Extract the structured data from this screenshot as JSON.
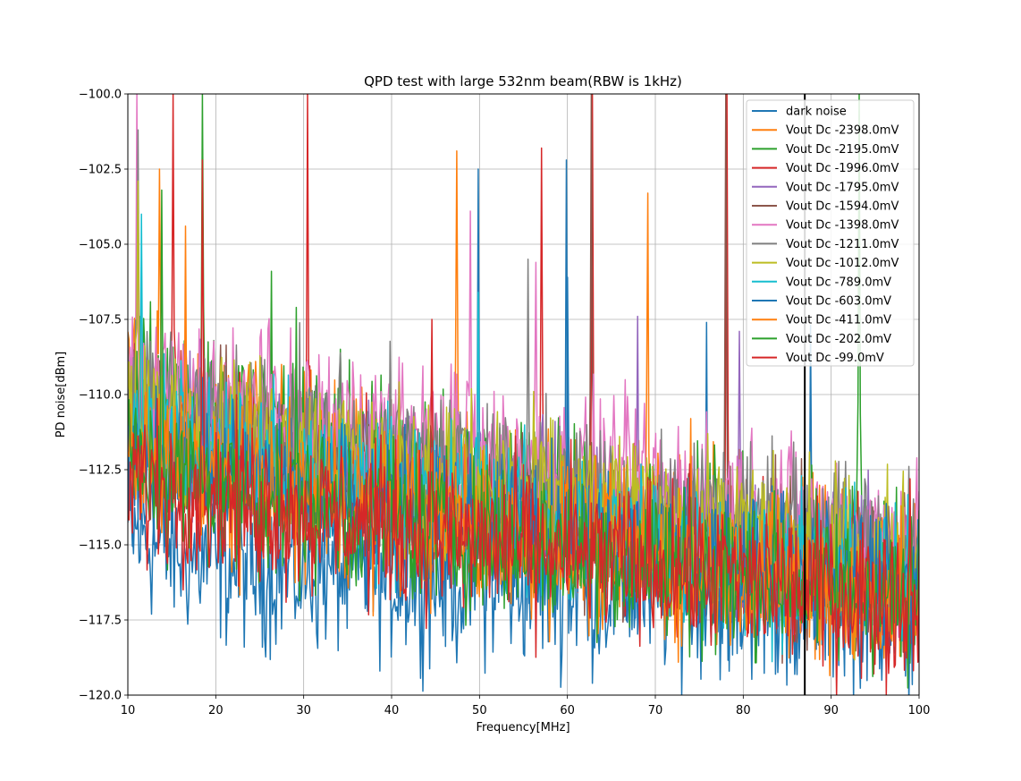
{
  "chart_data": {
    "type": "line",
    "title": "QPD test with large 532nm beam(RBW is 1kHz)",
    "xlabel": "Frequency[MHz]",
    "ylabel": "PD noise[dBm]",
    "xlim": [
      10,
      100
    ],
    "ylim": [
      -120,
      -100
    ],
    "xticks": [
      10,
      20,
      30,
      40,
      50,
      60,
      70,
      80,
      90,
      100
    ],
    "xtick_labels": [
      "10",
      "20",
      "30",
      "40",
      "50",
      "60",
      "70",
      "80",
      "90",
      "100"
    ],
    "yticks": [
      -120,
      -117.5,
      -115,
      -112.5,
      -110,
      -107.5,
      -105,
      -102.5,
      -100
    ],
    "ytick_labels": [
      "−120.0",
      "−117.5",
      "−115.0",
      "−112.5",
      "−110.0",
      "−107.5",
      "−105.0",
      "−102.5",
      "−100.0"
    ],
    "grid": true,
    "legend_position": "top-right",
    "vertical_marker_x": 87,
    "series": [
      {
        "name": "dark noise",
        "color": "#1f77b4",
        "x": [
          10,
          12,
          15,
          20,
          25,
          30,
          35,
          40,
          45,
          50,
          55,
          60,
          65,
          70,
          75,
          80,
          85,
          90,
          95,
          100
        ],
        "values": [
          -114.5,
          -114.8,
          -115.2,
          -115.6,
          -115.8,
          -115.9,
          -116.0,
          -116.1,
          -116.2,
          -116.3,
          -116.3,
          -116.4,
          -116.5,
          -116.6,
          -116.7,
          -116.8,
          -116.9,
          -117.0,
          -117.1,
          -117.2
        ],
        "spikes": [
          [
            49.9,
            -102.5
          ],
          [
            59.9,
            -102.2
          ],
          [
            75.8,
            -107.6
          ],
          [
            87.6,
            -107.7
          ]
        ]
      },
      {
        "name": "Vout Dc -2398.0mV",
        "color": "#ff7f0e",
        "x": [
          10,
          12,
          15,
          20,
          25,
          30,
          35,
          40,
          45,
          50,
          55,
          60,
          65,
          70,
          75,
          80,
          85,
          90,
          95,
          100
        ],
        "values": [
          -110.0,
          -110.4,
          -110.8,
          -111.2,
          -111.6,
          -112.0,
          -112.4,
          -112.7,
          -113.0,
          -113.3,
          -113.6,
          -113.9,
          -114.2,
          -114.5,
          -114.8,
          -115.0,
          -115.3,
          -115.6,
          -115.9,
          -116.1
        ],
        "spikes": [
          [
            13.6,
            -102.5
          ],
          [
            47.4,
            -101.9
          ],
          [
            69.1,
            -103.3
          ]
        ]
      },
      {
        "name": "Vout Dc -2195.0mV",
        "color": "#2ca02c",
        "x": [
          10,
          12,
          15,
          20,
          25,
          30,
          35,
          40,
          45,
          50,
          55,
          60,
          65,
          70,
          75,
          80,
          85,
          90,
          95,
          100
        ],
        "values": [
          -109.0,
          -109.5,
          -110.0,
          -110.5,
          -111.0,
          -111.4,
          -111.8,
          -112.2,
          -112.6,
          -113.0,
          -113.4,
          -113.8,
          -114.1,
          -114.4,
          -114.7,
          -115.0,
          -115.3,
          -115.5,
          -115.8,
          -116.0
        ],
        "spikes": [
          [
            18.5,
            -100.0
          ],
          [
            26.3,
            -105.9
          ],
          [
            93.2,
            -100.0
          ]
        ]
      },
      {
        "name": "Vout Dc -1996.0mV",
        "color": "#d62728",
        "x": [
          10,
          12,
          15,
          20,
          25,
          30,
          35,
          40,
          45,
          50,
          55,
          60,
          65,
          70,
          75,
          80,
          85,
          90,
          95,
          100
        ],
        "values": [
          -110.5,
          -111.0,
          -111.5,
          -112.0,
          -112.4,
          -112.8,
          -113.1,
          -113.4,
          -113.7,
          -114.0,
          -114.3,
          -114.6,
          -114.9,
          -115.1,
          -115.3,
          -115.6,
          -115.8,
          -116.0,
          -116.2,
          -116.4
        ],
        "spikes": [
          [
            15.2,
            -100.0
          ],
          [
            30.5,
            -100.0
          ],
          [
            57.0,
            -101.8
          ],
          [
            62.8,
            -100.0
          ],
          [
            78.1,
            -100.0
          ]
        ]
      },
      {
        "name": "Vout Dc -1795.0mV",
        "color": "#9467bd",
        "x": [
          10,
          20,
          30,
          40,
          50,
          60,
          70,
          80,
          90,
          100
        ],
        "values": [
          -110.8,
          -111.5,
          -112.2,
          -112.8,
          -113.4,
          -114.0,
          -114.6,
          -115.1,
          -115.6,
          -116.1
        ],
        "spikes": [
          [
            68.0,
            -107.4
          ],
          [
            79.5,
            -107.9
          ]
        ]
      },
      {
        "name": "Vout Dc -1594.0mV",
        "color": "#8c564b",
        "x": [
          10,
          20,
          30,
          40,
          50,
          60,
          70,
          80,
          90,
          100
        ],
        "values": [
          -111.0,
          -111.7,
          -112.4,
          -113.0,
          -113.6,
          -114.2,
          -114.8,
          -115.3,
          -115.8,
          -116.3
        ],
        "spikes": [
          [
            62.7,
            -100.0
          ],
          [
            78.0,
            -100.0
          ]
        ]
      },
      {
        "name": "Vout Dc -1398.0mV",
        "color": "#e377c2",
        "x": [
          10,
          20,
          30,
          40,
          50,
          60,
          70,
          80,
          90,
          100
        ],
        "values": [
          -109.8,
          -110.3,
          -110.8,
          -111.3,
          -111.9,
          -112.5,
          -113.1,
          -113.7,
          -114.3,
          -114.9
        ],
        "spikes": [
          [
            11.0,
            -100.0
          ],
          [
            48.9,
            -103.9
          ],
          [
            56.4,
            -105.6
          ]
        ]
      },
      {
        "name": "Vout Dc -1211.0mV",
        "color": "#7f7f7f",
        "x": [
          10,
          20,
          30,
          40,
          50,
          60,
          70,
          80,
          90,
          100
        ],
        "values": [
          -110.2,
          -110.8,
          -111.4,
          -112.0,
          -112.6,
          -113.2,
          -113.8,
          -114.3,
          -114.8,
          -115.3
        ],
        "spikes": [
          [
            11.1,
            -101.2
          ],
          [
            55.5,
            -105.5
          ]
        ]
      },
      {
        "name": "Vout Dc -1012.0mV",
        "color": "#bcbd22",
        "x": [
          10,
          20,
          30,
          40,
          50,
          60,
          70,
          80,
          90,
          100
        ],
        "values": [
          -110.6,
          -111.2,
          -111.8,
          -112.4,
          -113.0,
          -113.6,
          -114.2,
          -114.7,
          -115.2,
          -115.7
        ],
        "spikes": [
          [
            11.2,
            -102.9
          ]
        ]
      },
      {
        "name": "Vout Dc -789.0mV",
        "color": "#17becf",
        "x": [
          10,
          20,
          30,
          40,
          50,
          60,
          70,
          80,
          90,
          100
        ],
        "values": [
          -111.2,
          -111.9,
          -112.6,
          -113.2,
          -113.8,
          -114.4,
          -115.0,
          -115.5,
          -116.0,
          -116.5
        ],
        "spikes": [
          [
            11.6,
            -104.0
          ],
          [
            49.8,
            -106.6
          ]
        ]
      },
      {
        "name": "Vout Dc -603.0mV",
        "color": "#1f77b4",
        "x": [
          10,
          20,
          30,
          40,
          50,
          60,
          70,
          80,
          90,
          100
        ],
        "values": [
          -112.0,
          -112.6,
          -113.2,
          -113.8,
          -114.4,
          -114.9,
          -115.4,
          -115.9,
          -116.3,
          -116.7
        ],
        "spikes": [
          [
            60.0,
            -106.1
          ]
        ]
      },
      {
        "name": "Vout Dc -411.0mV",
        "color": "#ff7f0e",
        "x": [
          10,
          20,
          30,
          40,
          50,
          60,
          70,
          80,
          90,
          100
        ],
        "values": [
          -112.2,
          -112.8,
          -113.4,
          -114.0,
          -114.5,
          -115.0,
          -115.5,
          -115.9,
          -116.4,
          -116.8
        ],
        "spikes": [
          [
            16.5,
            -104.4
          ],
          [
            74.0,
            -110.8
          ]
        ]
      },
      {
        "name": "Vout Dc -202.0mV",
        "color": "#2ca02c",
        "x": [
          10,
          20,
          30,
          40,
          50,
          60,
          70,
          80,
          90,
          100
        ],
        "values": [
          -112.5,
          -113.1,
          -113.7,
          -114.2,
          -114.7,
          -115.2,
          -115.6,
          -116.0,
          -116.4,
          -116.8
        ],
        "spikes": [
          [
            13.9,
            -103.2
          ],
          [
            29.2,
            -107.1
          ]
        ]
      },
      {
        "name": "Vout Dc -99.0mV",
        "color": "#d62728",
        "x": [
          10,
          20,
          30,
          40,
          50,
          60,
          70,
          80,
          90,
          100
        ],
        "values": [
          -112.8,
          -113.4,
          -113.9,
          -114.4,
          -114.9,
          -115.3,
          -115.7,
          -116.1,
          -116.5,
          -116.9
        ],
        "spikes": [
          [
            18.5,
            -102.2
          ],
          [
            44.6,
            -107.5
          ],
          [
            99.0,
            -112.8
          ]
        ]
      }
    ]
  }
}
